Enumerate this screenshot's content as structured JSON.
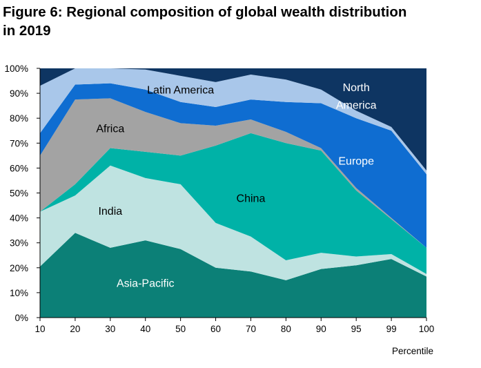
{
  "title_line1": "Figure 6: Regional composition of global wealth distribution",
  "title_line2": "in 2019",
  "chart_data": {
    "type": "area",
    "stacked": true,
    "title": "Figure 6: Regional composition of global wealth distribution in 2019",
    "xlabel": "Percentile",
    "ylabel": "",
    "x": [
      "10",
      "20",
      "30",
      "40",
      "50",
      "60",
      "70",
      "80",
      "90",
      "95",
      "99",
      "100"
    ],
    "ylim": [
      0,
      100
    ],
    "yticks": [
      "0%",
      "10%",
      "20%",
      "30%",
      "40%",
      "50%",
      "60%",
      "70%",
      "80%",
      "90%",
      "100%"
    ],
    "grid": false,
    "legend": "none",
    "series": [
      {
        "name": "Asia-Pacific",
        "color": "#0c8077",
        "values": [
          20.5,
          34.0,
          28.0,
          31.0,
          27.5,
          20.0,
          18.5,
          15.0,
          19.5,
          21.0,
          23.5,
          16.5
        ]
      },
      {
        "name": "India",
        "color": "#bfe3e1",
        "values": [
          22.0,
          15.0,
          33.0,
          25.0,
          26.0,
          18.0,
          14.0,
          8.0,
          6.5,
          3.5,
          2.0,
          1.0
        ]
      },
      {
        "name": "China",
        "color": "#00b2a7",
        "values": [
          0.0,
          4.5,
          7.0,
          10.5,
          11.5,
          31.0,
          41.5,
          47.0,
          41.0,
          26.5,
          14.0,
          10.5
        ]
      },
      {
        "name": "Africa",
        "color": "#a3a3a3",
        "values": [
          22.5,
          34.0,
          20.0,
          16.0,
          13.0,
          8.0,
          5.5,
          4.5,
          1.0,
          1.0,
          0.5,
          0.0
        ]
      },
      {
        "name": "Europe",
        "color": "#0f6dd1",
        "values": [
          9.0,
          6.0,
          6.0,
          9.0,
          8.5,
          7.5,
          8.0,
          12.0,
          18.0,
          28.0,
          35.0,
          29.5
        ]
      },
      {
        "name": "Latin America",
        "color": "#a9c7ea",
        "values": [
          19.0,
          6.5,
          6.0,
          8.0,
          10.5,
          10.0,
          10.0,
          9.0,
          5.5,
          3.0,
          1.5,
          1.5
        ]
      },
      {
        "name": "North America",
        "color": "#0e3562",
        "values": [
          7.0,
          0.0,
          0.0,
          0.5,
          3.0,
          5.5,
          2.5,
          4.5,
          8.5,
          17.0,
          23.5,
          41.0
        ]
      }
    ],
    "annotations": [
      {
        "text": "Asia-Pacific",
        "x": "40",
        "y": 14
      },
      {
        "text": "India",
        "x": "30",
        "y": 43
      },
      {
        "text": "China",
        "x": "70",
        "y": 48
      },
      {
        "text": "Africa",
        "x": "30",
        "y": 76
      },
      {
        "text": "Latin America",
        "x": "50",
        "y": 91.5
      },
      {
        "text": "Europe",
        "x": "95",
        "y": 63
      },
      {
        "text": "North",
        "x": "95",
        "y": 92.5
      },
      {
        "text": "America",
        "x": "95",
        "y": 85.5
      }
    ]
  }
}
